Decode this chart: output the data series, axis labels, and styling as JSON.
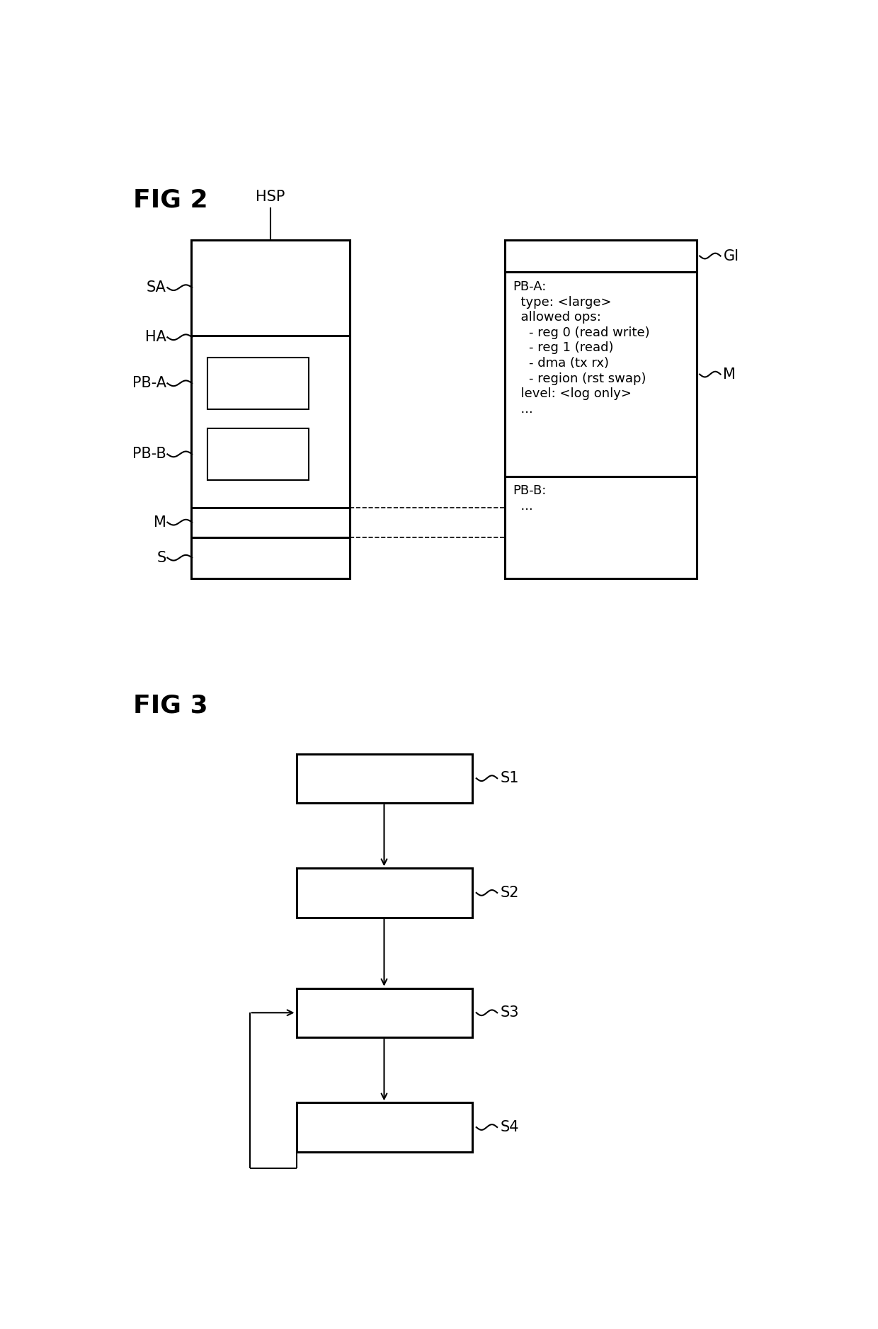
{
  "fig2_title": "FIG 2",
  "fig3_title": "FIG 3",
  "hsp_label": "HSP",
  "gi_label": "GI",
  "m_right_label": "M",
  "left_labels": [
    "SA",
    "HA",
    "PB-A",
    "PB-B",
    "M",
    "S"
  ],
  "pba_info_lines": [
    "PB-A:",
    "  type: <large>",
    "  allowed ops:",
    "    - reg 0 (read write)",
    "    - reg 1 (read)",
    "    - dma (tx rx)",
    "    - region (rst swap)",
    "  level: <log only>",
    "  ..."
  ],
  "pbb_info_lines": [
    "PB-B:",
    "  ..."
  ],
  "flow_labels": [
    "S1",
    "S2",
    "S3",
    "S4"
  ],
  "colors": {
    "line": "#000000",
    "bg": "#ffffff",
    "text": "#000000"
  },
  "lw_main": 2.2,
  "lw_thin": 1.5,
  "lw_dashed": 1.2
}
